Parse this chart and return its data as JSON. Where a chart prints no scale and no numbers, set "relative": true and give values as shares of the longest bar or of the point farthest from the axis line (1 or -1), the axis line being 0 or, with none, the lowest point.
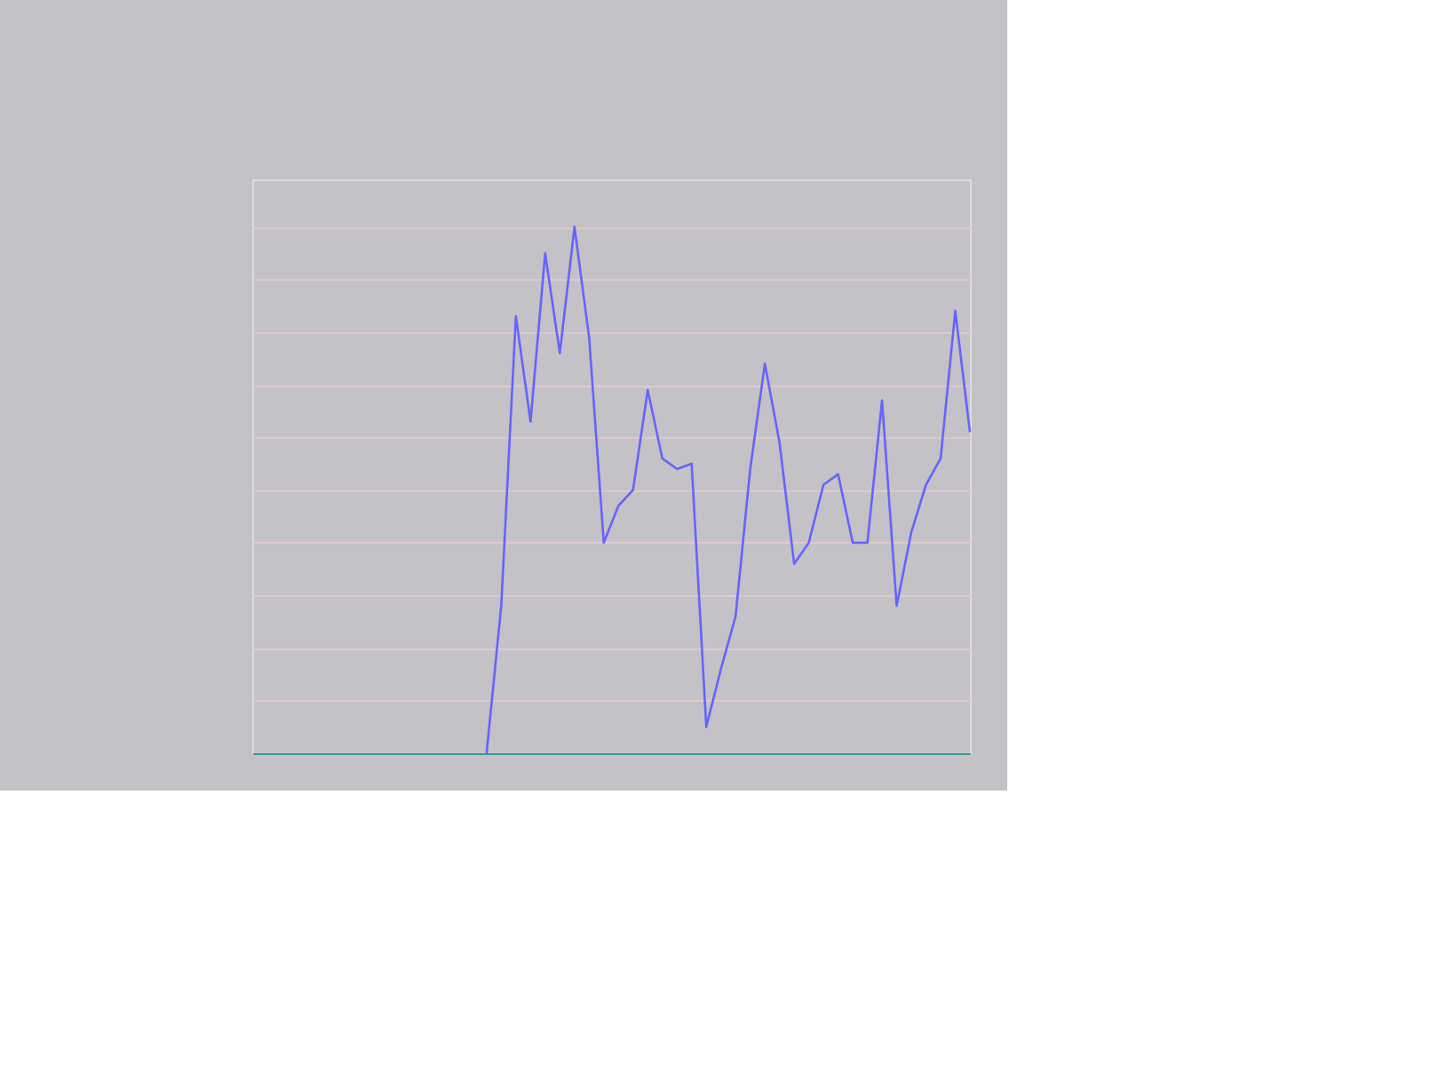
{
  "chart_data": {
    "type": "line",
    "relative": true,
    "grid": "y",
    "color": "#6464ff",
    "categories": [
      null,
      null,
      null,
      null,
      null,
      null,
      null,
      null,
      null,
      null,
      null,
      null,
      null,
      null,
      null,
      null,
      null,
      null,
      null,
      null,
      null,
      null,
      null,
      null,
      null,
      null,
      null,
      null,
      null,
      null,
      null,
      null,
      null,
      null,
      null,
      null,
      null,
      null,
      null,
      null,
      null,
      null,
      null,
      null,
      null,
      null,
      null,
      null,
      null,
      null
    ],
    "values": [
      null,
      null,
      null,
      null,
      null,
      null,
      null,
      null,
      null,
      null,
      null,
      null,
      null,
      null,
      null,
      null,
      0,
      0.28,
      0.83,
      0.63,
      0.95,
      0.76,
      1,
      0.79,
      0.4,
      0.47,
      0.5,
      0.69,
      0.56,
      0.54,
      0.55,
      0.05,
      0.16,
      0.26,
      0.54,
      0.74,
      0.59,
      0.36,
      0.4,
      0.51,
      0.53,
      0.4,
      0.4,
      0.67,
      0.28,
      0.42,
      0.51,
      0.56,
      0.84,
      0.61
    ]
  }
}
